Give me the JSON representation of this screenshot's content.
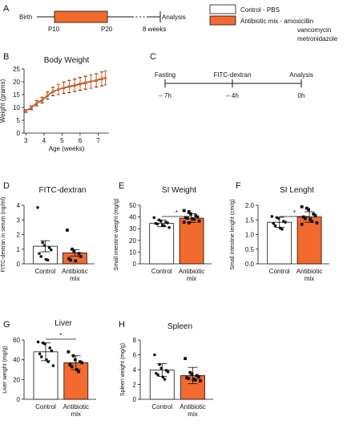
{
  "colors": {
    "antibiotic": "#f26a2e",
    "control": "#ffffff",
    "ink": "#111111"
  },
  "panelA": {
    "letter": "A",
    "birth": "Birth",
    "analysis": "Analysis",
    "p10": "P10",
    "p20": "P20",
    "weeks8": "8 weeks",
    "legend_control": "Control - PBS",
    "legend_antibiotic_1": "Antibiotic mix - amoxicillin",
    "legend_antibiotic_2": "vancomycin",
    "legend_antibiotic_3": "metronidazole"
  },
  "panelC": {
    "letter": "C",
    "labels": [
      "Fasting",
      "FITC-dextran",
      "Analysis"
    ],
    "times": [
      "– 7h",
      "– 4h",
      "0h"
    ]
  },
  "chart_data": [
    {
      "panel": "B",
      "type": "line",
      "title": "Body Weight",
      "xlabel": "Age (weeks)",
      "ylabel": "Weight (grams)",
      "xlim": [
        2.9,
        7.6
      ],
      "ylim": [
        0,
        25
      ],
      "xticks": [
        "3",
        "4",
        "5",
        "6",
        "7"
      ],
      "yticks": [
        "0",
        "5",
        "10",
        "15",
        "20",
        "25"
      ],
      "series": [
        {
          "name": "Control - PBS",
          "x": [
            3.0,
            3.3,
            3.6,
            3.9,
            4.2,
            4.5,
            4.8,
            5.1,
            5.4,
            5.7,
            6.0,
            6.3,
            6.6,
            6.9,
            7.2,
            7.4
          ],
          "y": [
            8.6,
            9.8,
            11.6,
            12.8,
            14.6,
            16.2,
            17.0,
            17.6,
            18.1,
            18.6,
            19.1,
            19.6,
            20.1,
            20.5,
            21.1,
            21.5
          ],
          "err": [
            0.6,
            0.7,
            1.0,
            1.1,
            1.4,
            1.6,
            2.0,
            2.2,
            2.4,
            2.4,
            2.5,
            2.5,
            2.6,
            2.6,
            2.7,
            2.7
          ]
        },
        {
          "name": "Antibiotic mix",
          "x": [
            3.0,
            3.3,
            3.6,
            3.9,
            4.2,
            4.5,
            4.8,
            5.1,
            5.4,
            5.7,
            6.0,
            6.3,
            6.6,
            6.9,
            7.2,
            7.4
          ],
          "y": [
            8.7,
            10.0,
            11.8,
            13.0,
            14.8,
            16.4,
            17.1,
            17.8,
            18.3,
            18.8,
            19.3,
            19.8,
            20.2,
            20.7,
            21.3,
            21.6
          ],
          "err": [
            0.6,
            0.7,
            1.0,
            1.1,
            1.4,
            1.6,
            2.0,
            2.2,
            2.4,
            2.4,
            2.5,
            2.5,
            2.6,
            2.6,
            2.7,
            2.7
          ]
        }
      ]
    },
    {
      "panel": "D",
      "type": "bar",
      "title": "FITC-dextran",
      "ylabel": "FITC-dextran in serum (ng/ml)",
      "ylim": [
        0,
        4
      ],
      "yticks": [
        "0",
        "1",
        "2",
        "3",
        "4"
      ],
      "categories": [
        "Control",
        "Antibiotic\nmix"
      ],
      "values": [
        1.2,
        0.75
      ],
      "err": [
        0.38,
        0.22
      ],
      "points": [
        [
          3.85,
          1.45,
          1.25,
          1.1,
          0.95,
          0.7,
          0.5,
          0.3,
          0.25
        ],
        [
          2.3,
          1.0,
          0.85,
          0.7,
          0.5,
          0.35,
          0.25,
          0.2
        ]
      ]
    },
    {
      "panel": "E",
      "type": "bar",
      "title": "SI Weight",
      "ylabel": "Small intestine weight (mg/g)",
      "ylim": [
        0,
        50
      ],
      "yticks": [
        "0",
        "10",
        "20",
        "30",
        "40",
        "50"
      ],
      "categories": [
        "Control",
        "Antibiotic\nmix"
      ],
      "values": [
        34.5,
        39.0
      ],
      "err": [
        2.8,
        3.8
      ],
      "significance": "*",
      "points": [
        [
          39.5,
          37.5,
          36.5,
          35.5,
          35,
          34.5,
          34,
          33,
          32.5,
          31
        ],
        [
          45.5,
          44.5,
          42.5,
          41,
          40,
          39.5,
          39,
          38.5,
          38,
          36.5,
          35.5,
          35
        ]
      ]
    },
    {
      "panel": "F",
      "type": "bar",
      "title": "SI Lenght",
      "ylabel": "Small intestine lenght (cm/g)",
      "ylim": [
        0,
        2.0
      ],
      "yticks": [
        "0.0",
        "0.5",
        "1.0",
        "1.5",
        "2.0"
      ],
      "categories": [
        "Control",
        "Antibiotic\nmix"
      ],
      "values": [
        1.42,
        1.6
      ],
      "err": [
        0.17,
        0.18
      ],
      "significance": "*",
      "points": [
        [
          1.62,
          1.58,
          1.55,
          1.45,
          1.42,
          1.38,
          1.3,
          1.22,
          1.18
        ],
        [
          1.95,
          1.9,
          1.85,
          1.7,
          1.65,
          1.6,
          1.55,
          1.52,
          1.45,
          1.4,
          1.35
        ]
      ]
    },
    {
      "panel": "G",
      "type": "bar",
      "title": "Liver",
      "ylabel": "Liver weight (mg/g)",
      "ylim": [
        0,
        60
      ],
      "yticks": [
        "0",
        "20",
        "40",
        "60"
      ],
      "categories": [
        "Control",
        "Antibiotic\nmix"
      ],
      "values": [
        48,
        37
      ],
      "err": [
        9,
        7
      ],
      "significance": "*",
      "points": [
        [
          58,
          57,
          56,
          52,
          49,
          46,
          43,
          40,
          38,
          34
        ],
        [
          48,
          44,
          40,
          38,
          37,
          35,
          33,
          30,
          28
        ]
      ]
    },
    {
      "panel": "H",
      "type": "bar",
      "title": "Spleen",
      "ylabel": "Spleen weight (mg/g)",
      "ylim": [
        0,
        8
      ],
      "yticks": [
        "0",
        "2",
        "4",
        "6",
        "8"
      ],
      "categories": [
        "Control",
        "Antibiotic\nmix"
      ],
      "values": [
        3.95,
        3.2
      ],
      "err": [
        0.85,
        1.1
      ],
      "points": [
        [
          6.0,
          4.7,
          4.2,
          3.9,
          3.7,
          3.5,
          3.3,
          3.0,
          2.7
        ],
        [
          5.5,
          3.6,
          3.4,
          3.2,
          3.0,
          2.9,
          2.8,
          2.7,
          2.6,
          2.5
        ]
      ]
    }
  ]
}
